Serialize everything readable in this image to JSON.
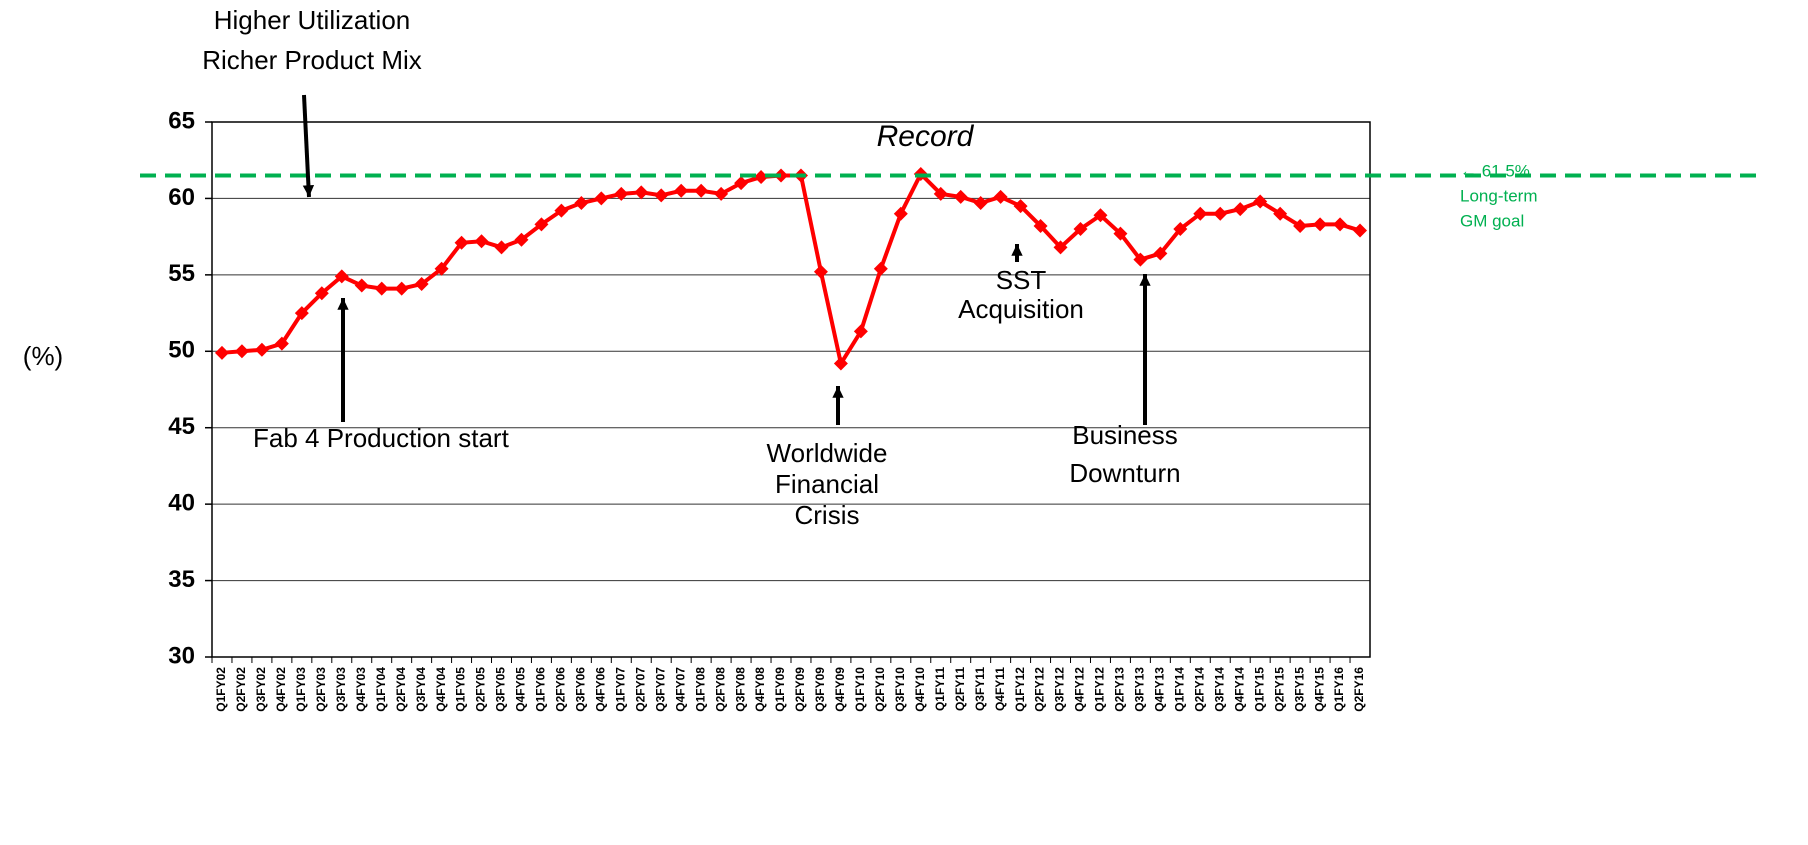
{
  "chart_data": {
    "type": "line",
    "ylabel": "(%)",
    "categories": [
      "Q1FY02",
      "Q2FY02",
      "Q3FY02",
      "Q4FY02",
      "Q1FY03",
      "Q2FY03",
      "Q3FY03",
      "Q4FY03",
      "Q1FY04",
      "Q2FY04",
      "Q3FY04",
      "Q4FY04",
      "Q1FY05",
      "Q2FY05",
      "Q3FY05",
      "Q4FY05",
      "Q1FY06",
      "Q2FY06",
      "Q3FY06",
      "Q4FY06",
      "Q1FY07",
      "Q2FY07",
      "Q3FY07",
      "Q4FY07",
      "Q1FY08",
      "Q2FY08",
      "Q3FY08",
      "Q4FY08",
      "Q1FY09",
      "Q2FY09",
      "Q3FY09",
      "Q4FY09",
      "Q1FY10",
      "Q2FY10",
      "Q3FY10",
      "Q4FY10",
      "Q1FY11",
      "Q2FY11",
      "Q3FY11",
      "Q4FY11",
      "Q1FY12",
      "Q2FY12",
      "Q3FY12",
      "Q4FY12",
      "Q1FY12",
      "Q2FY13",
      "Q3FY13",
      "Q4FY13",
      "Q1FY14",
      "Q2FY14",
      "Q3FY14",
      "Q4FY14",
      "Q1FY15",
      "Q2FY15",
      "Q3FY15",
      "Q4FY15",
      "Q1FY16",
      "Q2FY16"
    ],
    "series": [
      {
        "color": "#ff0000",
        "values": [
          49.9,
          50.0,
          50.1,
          50.5,
          52.5,
          53.8,
          54.9,
          54.3,
          54.1,
          54.1,
          54.4,
          55.4,
          57.1,
          57.2,
          56.8,
          57.3,
          58.3,
          59.2,
          59.7,
          60.0,
          60.3,
          60.4,
          60.2,
          60.5,
          60.5,
          60.3,
          61.0,
          61.4,
          61.5,
          61.5,
          55.2,
          49.2,
          51.3,
          55.4,
          59.0,
          61.6,
          60.3,
          60.1,
          59.7,
          60.1,
          59.5,
          58.2,
          56.8,
          58.0,
          58.9,
          57.7,
          56.0,
          56.4,
          58.0,
          59.0,
          59.0,
          59.3,
          59.8,
          59.0,
          58.2,
          58.3,
          58.3,
          57.9
        ]
      }
    ],
    "ylim": [
      30,
      65
    ],
    "yticks": [
      30,
      35,
      40,
      45,
      50,
      55,
      60,
      65
    ],
    "grid": true,
    "goal": {
      "value": 61.5,
      "color": "#00b050",
      "lines": [
        "← 61.5%",
        "Long-term",
        "GM goal"
      ]
    },
    "annotations": [
      {
        "lines": [
          "Higher Utilization",
          "Richer Product Mix"
        ]
      },
      {
        "lines": [
          "Fab 4 Production start"
        ]
      },
      {
        "lines": [
          "Worldwide",
          "Financial",
          "Crisis"
        ]
      },
      {
        "lines": [
          "Record"
        ]
      },
      {
        "lines": [
          "SST",
          "Acquisition"
        ]
      },
      {
        "lines": [
          "Business",
          "Downturn"
        ]
      }
    ]
  }
}
